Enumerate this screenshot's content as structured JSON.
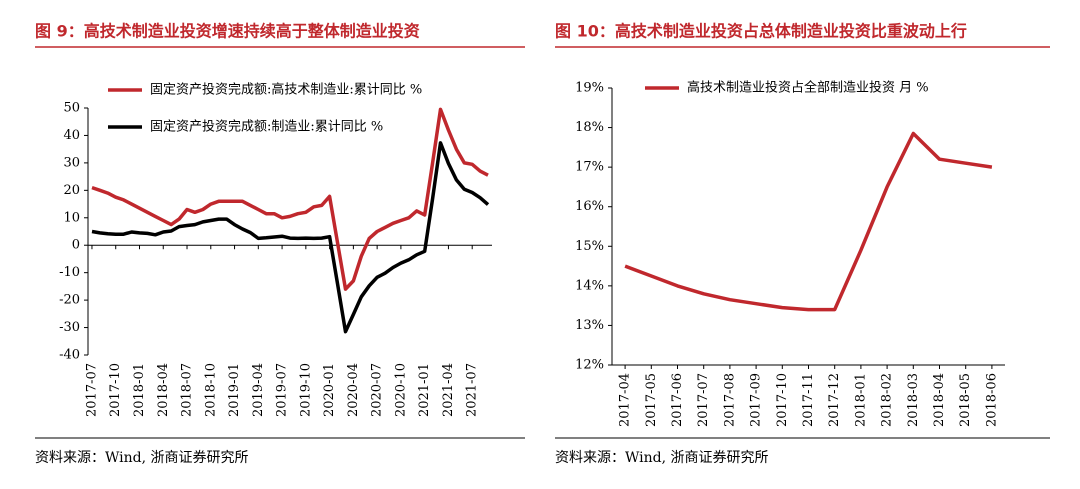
{
  "chart_data": [
    {
      "type": "line",
      "title": "图 9：高技术制造业投资增速持续高于整体制造业投资",
      "source": "资料来源：Wind, 浙商证券研究所",
      "categories": [
        "2017-07",
        null,
        null,
        "2017-10",
        null,
        null,
        "2018-01",
        null,
        null,
        "2018-04",
        null,
        null,
        "2018-07",
        null,
        null,
        "2018-10",
        null,
        null,
        "2019-01",
        null,
        null,
        "2019-04",
        null,
        null,
        "2019-07",
        null,
        null,
        "2019-10",
        null,
        null,
        "2020-01",
        null,
        null,
        "2020-04",
        null,
        null,
        "2020-07",
        null,
        null,
        "2020-10",
        null,
        null,
        "2021-01",
        null,
        null,
        "2021-04",
        null,
        null,
        "2021-07",
        null,
        null
      ],
      "series": [
        {
          "name": "固定资产投资完成额:高技术制造业:累计同比 %",
          "color": "#c0282d",
          "values": [
            21,
            20,
            19,
            17.5,
            16.5,
            15,
            13.5,
            12,
            10.5,
            9,
            7.5,
            9.5,
            13,
            12,
            13,
            15,
            16,
            16,
            16,
            16,
            14.5,
            13,
            11.5,
            11.5,
            10,
            10.5,
            11.5,
            12,
            14,
            14.5,
            17.8,
            1,
            -16,
            -13,
            -4,
            2.5,
            5,
            6.5,
            8,
            9,
            10,
            12.5,
            11,
            30,
            49.5,
            42,
            35,
            30,
            29.5,
            27,
            25.5
          ]
        },
        {
          "name": "固定资产投资完成额:制造业:累计同比 %",
          "color": "#000000",
          "values": [
            5,
            4.5,
            4.2,
            4,
            4,
            4.8,
            4.5,
            4.3,
            3.8,
            4.8,
            5.2,
            6.8,
            7.2,
            7.5,
            8.5,
            9,
            9.5,
            9.5,
            7.5,
            5.9,
            4.6,
            2.5,
            2.7,
            3,
            3.3,
            2.6,
            2.5,
            2.6,
            2.5,
            2.6,
            3.1,
            -14,
            -31.5,
            -25.2,
            -18.8,
            -14.8,
            -11.7,
            -10.2,
            -8.1,
            -6.5,
            -5.3,
            -3.5,
            -2.2,
            17,
            37.3,
            29.8,
            23.8,
            20.4,
            19.2,
            17.3,
            14.8
          ]
        }
      ],
      "ylim": [
        -40,
        50
      ],
      "yticks": [
        -40,
        -30,
        -20,
        -10,
        0,
        10,
        20,
        30,
        40,
        50
      ]
    },
    {
      "type": "line",
      "title": "图 10：高技术制造业投资占总体制造业投资比重波动上行",
      "source": "资料来源：Wind, 浙商证券研究所",
      "categories": [
        "2017-04",
        "2017-05",
        "2017-06",
        "2017-07",
        "2017-08",
        "2017-09",
        "2017-10",
        "2017-11",
        "2017-12",
        "2018-01",
        "2018-02",
        "2018-03",
        "2018-04",
        "2018-05",
        "2018-06"
      ],
      "series": [
        {
          "name": "高技术制造业投资占全部制造业投资 月 %",
          "color": "#c0282d",
          "values": [
            14.5,
            14.25,
            14.0,
            13.8,
            13.65,
            13.55,
            13.45,
            13.4,
            13.4,
            14.9,
            16.5,
            17.85,
            17.2,
            17.1,
            17.0
          ]
        }
      ],
      "ylim": [
        12,
        19
      ],
      "yticks": [
        {
          "value": 12,
          "label": "12%"
        },
        {
          "value": 13,
          "label": "13%"
        },
        {
          "value": 14,
          "label": "14%"
        },
        {
          "value": 15,
          "label": "15%"
        },
        {
          "value": 16,
          "label": "16%"
        },
        {
          "value": 17,
          "label": "17%"
        },
        {
          "value": 18,
          "label": "18%"
        },
        {
          "value": 19,
          "label": "19%"
        }
      ]
    }
  ]
}
